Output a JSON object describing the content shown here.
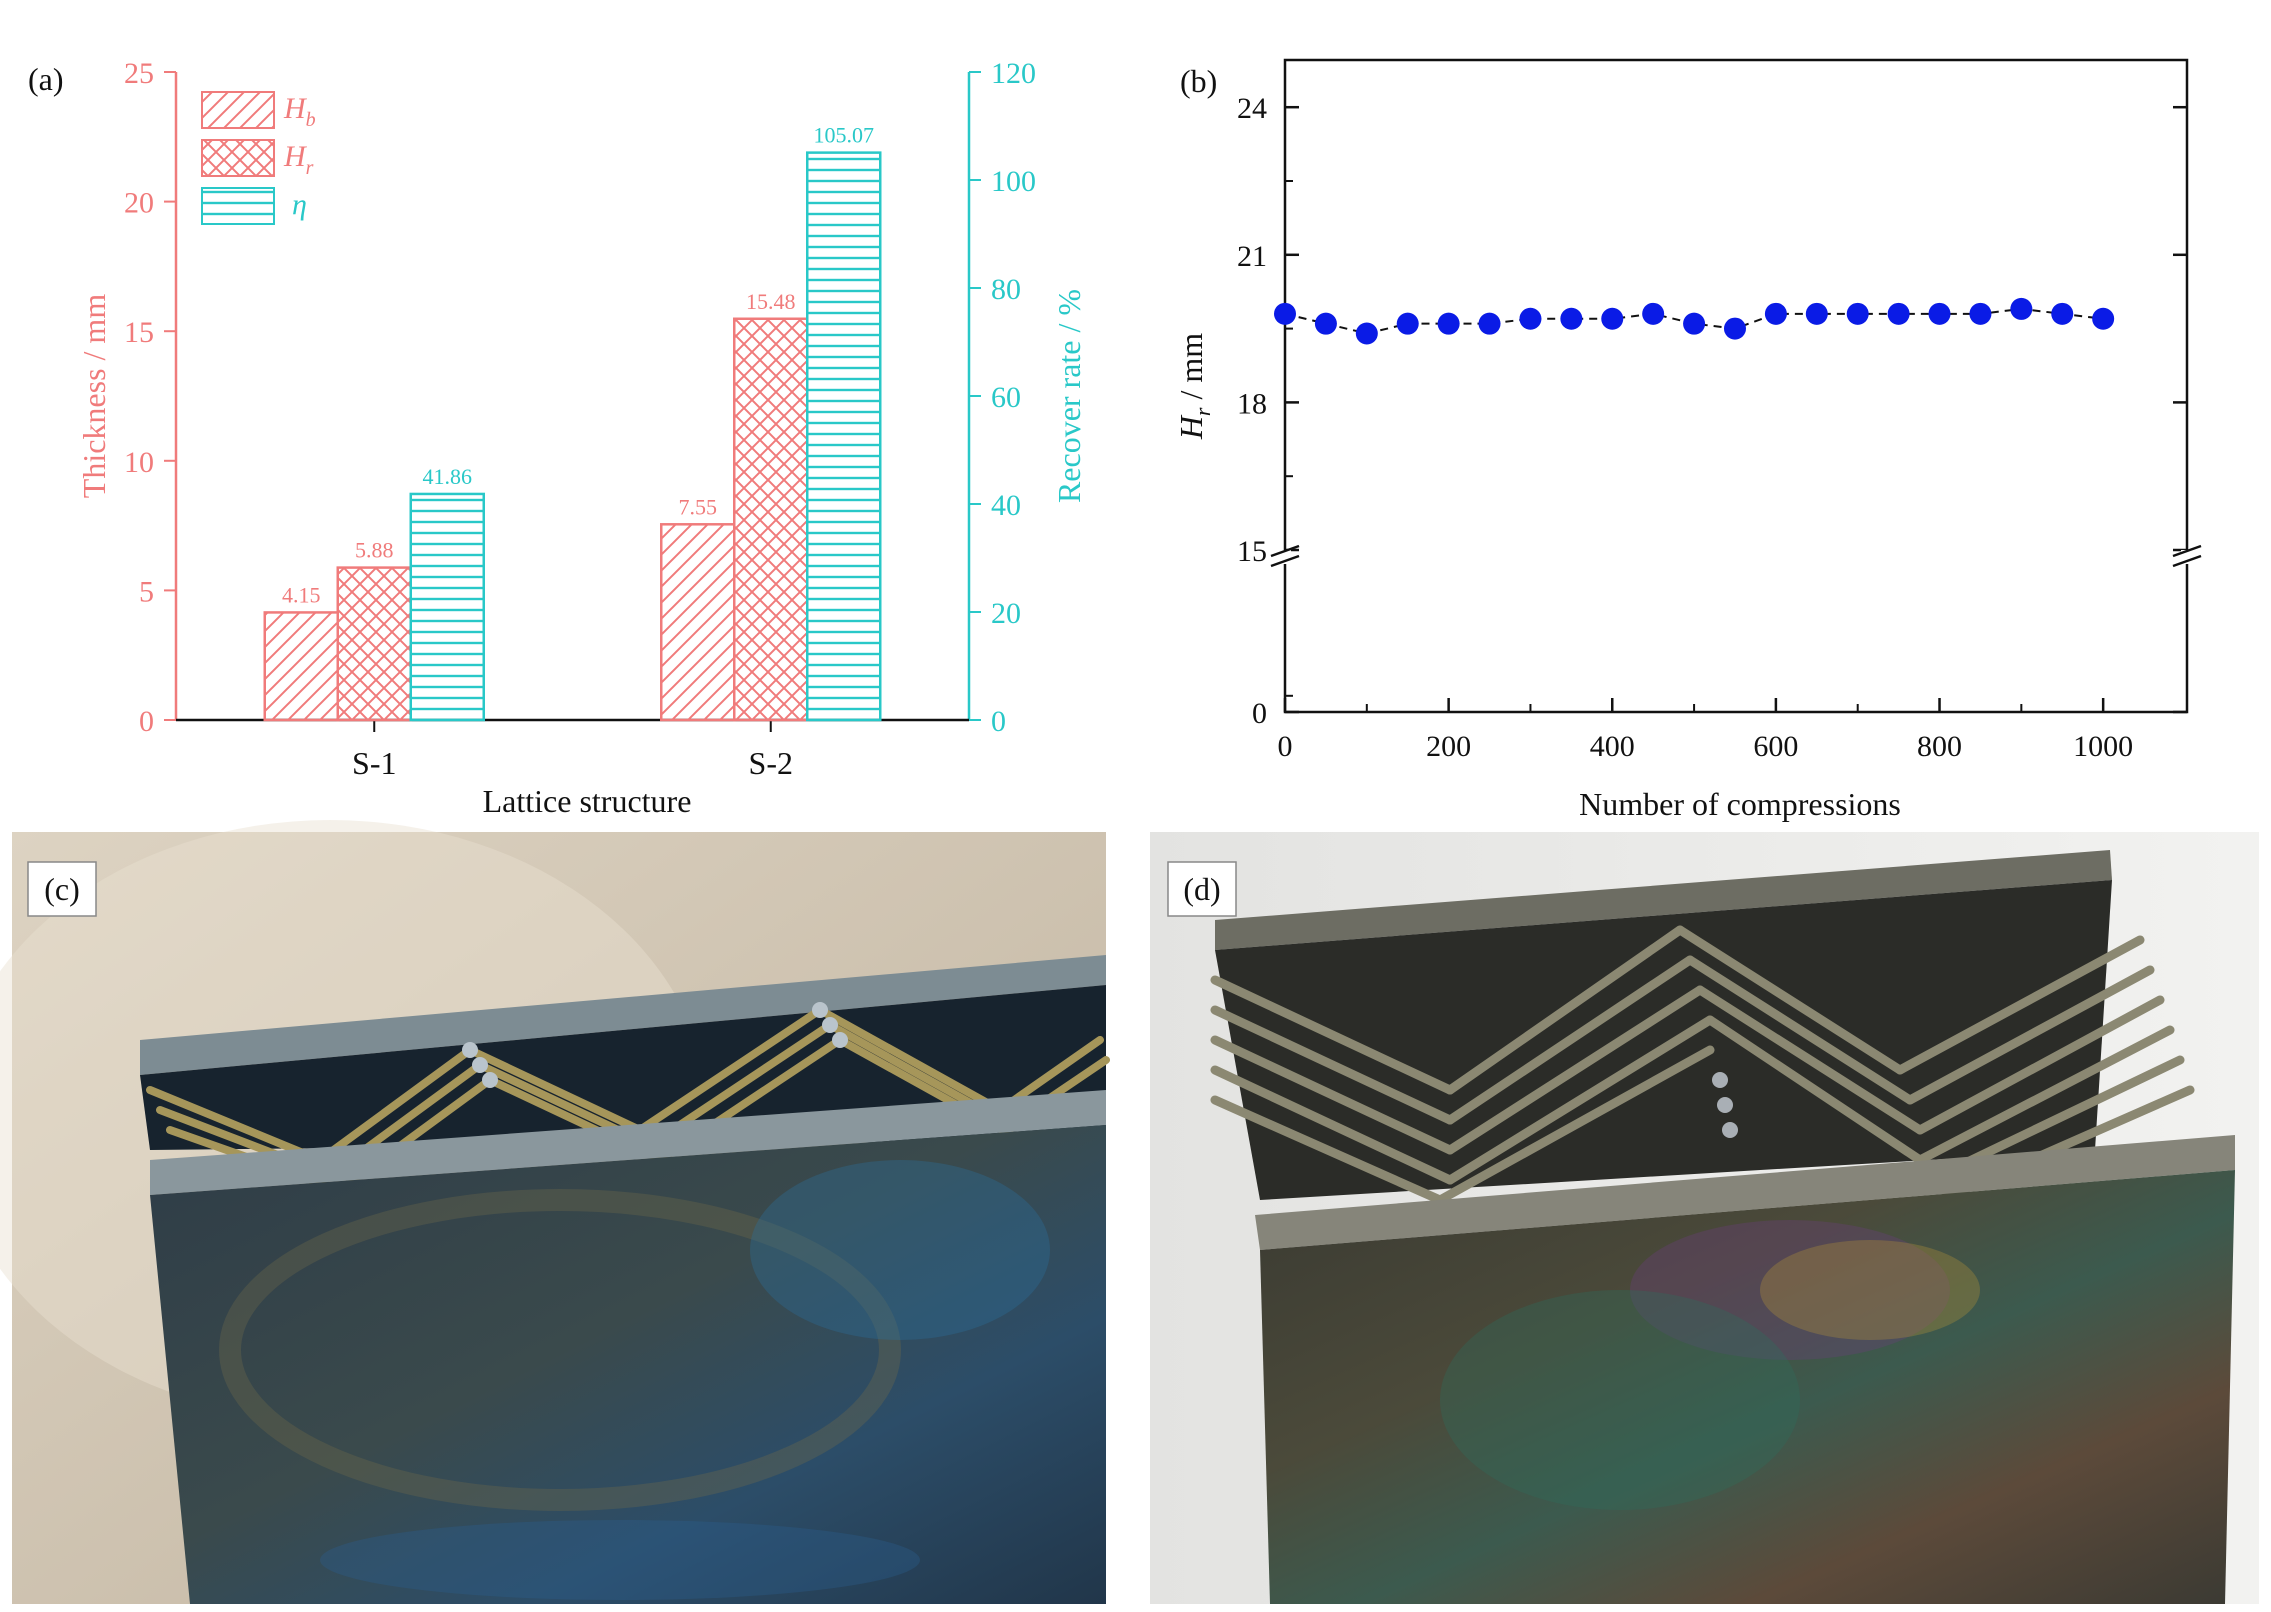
{
  "panels": {
    "a_label": "(a)",
    "b_label": "(b)",
    "c_label": "(c)",
    "d_label": "(d)"
  },
  "colors": {
    "red": "#f07b7b",
    "cyan": "#29c8c8",
    "blue": "#0a1be6"
  },
  "chart_data": [
    {
      "type": "bar",
      "title": "",
      "categories": [
        "S-1",
        "S-2"
      ],
      "xlabel": "Lattice structure",
      "ylabel": "Thickness / mm",
      "y2label": "Recover rate / %",
      "ylim": [
        0,
        25
      ],
      "y2lim": [
        0,
        120
      ],
      "yticks": [
        "0",
        "5",
        "10",
        "15",
        "20",
        "25"
      ],
      "y2ticks": [
        "0",
        "20",
        "40",
        "60",
        "80",
        "100",
        "120"
      ],
      "series": [
        {
          "name": "H_b",
          "symbol": "H",
          "sub": "b",
          "axis": "left",
          "pattern": "diag",
          "values": [
            4.15,
            7.55
          ],
          "labels": [
            "4.15",
            "7.55"
          ]
        },
        {
          "name": "H_r",
          "symbol": "H",
          "sub": "r",
          "axis": "left",
          "pattern": "cross",
          "values": [
            5.88,
            15.48
          ],
          "labels": [
            "5.88",
            "15.48"
          ]
        },
        {
          "name": "η",
          "symbol": "η",
          "sub": "",
          "axis": "right",
          "pattern": "horiz",
          "values": [
            41.86,
            105.07
          ],
          "labels": [
            "41.86",
            "105.07"
          ]
        }
      ],
      "legend": "top-left"
    },
    {
      "type": "scatter",
      "title": "",
      "xlabel": "Number of compressions",
      "ylabel_sym": "H",
      "ylabel_sub": "r",
      "ylabel_unit": " / mm",
      "xlim": [
        0,
        1050
      ],
      "xticks": [
        "0",
        "200",
        "400",
        "600",
        "800",
        "1000"
      ],
      "yticks": [
        "0",
        "15",
        "18",
        "21",
        "24"
      ],
      "axis_break": "between 0 and 15",
      "x": [
        0,
        50,
        100,
        150,
        200,
        250,
        300,
        350,
        400,
        450,
        500,
        550,
        600,
        650,
        700,
        750,
        800,
        850,
        900,
        950,
        1000
      ],
      "y": [
        19.8,
        19.6,
        19.4,
        19.6,
        19.6,
        19.6,
        19.7,
        19.7,
        19.7,
        19.8,
        19.6,
        19.5,
        19.8,
        19.8,
        19.8,
        19.8,
        19.8,
        19.8,
        19.9,
        19.8,
        19.7
      ]
    }
  ]
}
